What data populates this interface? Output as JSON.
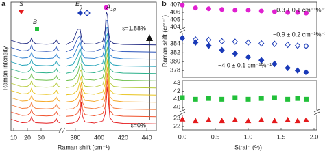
{
  "chart_data": [
    {
      "type": "line",
      "panel": "a",
      "ylabel": "Raman intensity",
      "xlabel": "Raman shift (cm⁻¹)",
      "annotations": [
        "ε=1.88%",
        "ε=0%"
      ],
      "peak_labels": [
        {
          "base": "S"
        },
        {
          "base": "B"
        },
        {
          "base": "E",
          "sub": "g"
        },
        {
          "base": "A",
          "sub": "1g"
        }
      ],
      "segments": [
        {
          "xlim": [
            8,
            44
          ],
          "xticks": [
            10,
            20,
            30
          ],
          "x": [
            8,
            16,
            20,
            22,
            23,
            24,
            26,
            34,
            39,
            40,
            41,
            42,
            44
          ],
          "series": [
            {
              "color": "#e41a1c",
              "values": [
                0.3,
                0.1,
                0.12,
                0.22,
                0.45,
                0.22,
                0.1,
                0.07,
                0.1,
                0.2,
                0.35,
                0.15,
                0.08
              ]
            },
            {
              "color": "#f0502a",
              "values": [
                0.3,
                0.1,
                0.12,
                0.22,
                0.44,
                0.22,
                0.1,
                0.07,
                0.1,
                0.2,
                0.34,
                0.15,
                0.08
              ]
            },
            {
              "color": "#f5793a",
              "values": [
                0.3,
                0.1,
                0.12,
                0.23,
                0.45,
                0.21,
                0.1,
                0.07,
                0.1,
                0.2,
                0.35,
                0.15,
                0.08
              ]
            },
            {
              "color": "#f5a623",
              "values": [
                0.3,
                0.1,
                0.12,
                0.22,
                0.43,
                0.22,
                0.1,
                0.07,
                0.1,
                0.21,
                0.34,
                0.15,
                0.08
              ]
            },
            {
              "color": "#e8c31a",
              "values": [
                0.3,
                0.1,
                0.12,
                0.22,
                0.44,
                0.21,
                0.1,
                0.07,
                0.1,
                0.2,
                0.35,
                0.14,
                0.08
              ]
            },
            {
              "color": "#b5c935",
              "values": [
                0.3,
                0.1,
                0.12,
                0.23,
                0.45,
                0.22,
                0.1,
                0.07,
                0.1,
                0.2,
                0.34,
                0.15,
                0.08
              ]
            },
            {
              "color": "#6cbf4a",
              "values": [
                0.3,
                0.1,
                0.12,
                0.22,
                0.44,
                0.22,
                0.1,
                0.07,
                0.1,
                0.21,
                0.35,
                0.15,
                0.08
              ]
            },
            {
              "color": "#2ab08a",
              "values": [
                0.3,
                0.1,
                0.12,
                0.22,
                0.45,
                0.21,
                0.1,
                0.07,
                0.1,
                0.2,
                0.34,
                0.15,
                0.08
              ]
            },
            {
              "color": "#1fa2b8",
              "values": [
                0.3,
                0.1,
                0.12,
                0.23,
                0.44,
                0.22,
                0.1,
                0.07,
                0.1,
                0.2,
                0.35,
                0.15,
                0.08
              ]
            },
            {
              "color": "#2a7fd0",
              "values": [
                0.3,
                0.1,
                0.12,
                0.22,
                0.43,
                0.22,
                0.1,
                0.07,
                0.1,
                0.21,
                0.34,
                0.14,
                0.08
              ]
            },
            {
              "color": "#2850b8",
              "values": [
                0.3,
                0.1,
                0.12,
                0.22,
                0.44,
                0.21,
                0.1,
                0.07,
                0.1,
                0.2,
                0.35,
                0.15,
                0.08
              ]
            },
            {
              "color": "#1a237e",
              "values": [
                0.3,
                0.1,
                0.12,
                0.23,
                0.45,
                0.22,
                0.1,
                0.07,
                0.1,
                0.2,
                0.34,
                0.15,
                0.08
              ]
            }
          ]
        },
        {
          "xlim": [
            372,
            448
          ],
          "xticks": [
            380,
            400,
            420,
            440
          ],
          "x": [
            372,
            378,
            382,
            384,
            385,
            386,
            388,
            396,
            403,
            405,
            406,
            407,
            408,
            409,
            412,
            420,
            448
          ],
          "series": [
            {
              "color": "#e41a1c",
              "values": [
                0.05,
                0.08,
                0.2,
                0.55,
                1.3,
                0.5,
                0.15,
                0.08,
                0.2,
                0.6,
                1.4,
                2.2,
                1.2,
                0.4,
                0.12,
                0.06,
                0.03
              ]
            },
            {
              "color": "#f0502a",
              "values": [
                0.05,
                0.08,
                0.22,
                0.6,
                1.3,
                0.48,
                0.15,
                0.08,
                0.2,
                0.62,
                1.45,
                2.2,
                1.15,
                0.4,
                0.12,
                0.06,
                0.03
              ]
            },
            {
              "color": "#f5793a",
              "values": [
                0.05,
                0.08,
                0.25,
                0.7,
                1.25,
                0.45,
                0.14,
                0.08,
                0.2,
                0.65,
                1.5,
                2.15,
                1.1,
                0.38,
                0.12,
                0.06,
                0.03
              ]
            },
            {
              "color": "#f5a623",
              "values": [
                0.05,
                0.09,
                0.28,
                0.8,
                1.2,
                0.42,
                0.14,
                0.08,
                0.2,
                0.68,
                1.55,
                2.1,
                1.05,
                0.36,
                0.12,
                0.06,
                0.03
              ]
            },
            {
              "color": "#e8c31a",
              "values": [
                0.05,
                0.09,
                0.32,
                0.9,
                1.15,
                0.4,
                0.13,
                0.08,
                0.2,
                0.7,
                1.6,
                2.1,
                1.0,
                0.35,
                0.12,
                0.06,
                0.03
              ]
            },
            {
              "color": "#b5c935",
              "values": [
                0.05,
                0.1,
                0.38,
                1.0,
                1.1,
                0.38,
                0.13,
                0.08,
                0.21,
                0.72,
                1.65,
                2.05,
                0.95,
                0.34,
                0.12,
                0.06,
                0.03
              ]
            },
            {
              "color": "#6cbf4a",
              "values": [
                0.05,
                0.1,
                0.45,
                1.05,
                1.0,
                0.35,
                0.12,
                0.08,
                0.21,
                0.75,
                1.7,
                2.0,
                0.9,
                0.33,
                0.12,
                0.06,
                0.03
              ]
            },
            {
              "color": "#2ab08a",
              "values": [
                0.05,
                0.12,
                0.55,
                1.1,
                0.9,
                0.32,
                0.12,
                0.08,
                0.22,
                0.78,
                1.75,
                2.0,
                0.88,
                0.32,
                0.12,
                0.06,
                0.03
              ]
            },
            {
              "color": "#1fa2b8",
              "values": [
                0.05,
                0.14,
                0.65,
                1.1,
                0.8,
                0.3,
                0.11,
                0.08,
                0.22,
                0.8,
                1.8,
                1.95,
                0.85,
                0.3,
                0.12,
                0.06,
                0.03
              ]
            },
            {
              "color": "#2a7fd0",
              "values": [
                0.05,
                0.16,
                0.75,
                1.05,
                0.7,
                0.28,
                0.11,
                0.08,
                0.22,
                0.82,
                1.85,
                1.9,
                0.8,
                0.3,
                0.12,
                0.06,
                0.03
              ]
            },
            {
              "color": "#2850b8",
              "values": [
                0.05,
                0.2,
                0.85,
                1.0,
                0.6,
                0.26,
                0.1,
                0.08,
                0.23,
                0.85,
                1.9,
                1.85,
                0.78,
                0.28,
                0.12,
                0.06,
                0.03
              ]
            },
            {
              "color": "#1a237e",
              "values": [
                0.05,
                0.25,
                0.95,
                0.95,
                0.5,
                0.25,
                0.1,
                0.08,
                0.23,
                0.88,
                1.95,
                1.8,
                0.75,
                0.28,
                0.12,
                0.06,
                0.03
              ]
            }
          ]
        }
      ]
    },
    {
      "type": "scatter",
      "panel": "b",
      "xlim": [
        0,
        2
      ],
      "ylim": [
        403.6,
        407.4
      ],
      "yticks": [
        404,
        405,
        406,
        407
      ],
      "x": [
        0,
        0.2,
        0.4,
        0.6,
        0.8,
        1.0,
        1.2,
        1.4,
        1.6,
        1.75,
        1.88
      ],
      "annotations": [
        {
          "text": "−0.3 ± 0.1 cm⁻¹%⁻¹",
          "color": "#e020d0"
        }
      ],
      "series": [
        {
          "marker": "circle",
          "filled": true,
          "color": "#e020d0",
          "values": [
            407.0,
            406.6,
            406.5,
            406.4,
            406.3,
            406.3,
            406.2,
            406.1,
            406.0,
            406.0,
            405.9
          ]
        }
      ]
    },
    {
      "type": "scatter",
      "ylabel": "Raman shift (cm⁻¹)",
      "xlim": [
        0,
        2
      ],
      "ylim": [
        376.5,
        386.5
      ],
      "yticks": [
        378,
        380,
        382,
        384
      ],
      "x": [
        0,
        0.2,
        0.4,
        0.6,
        0.8,
        1.0,
        1.2,
        1.4,
        1.6,
        1.75,
        1.88
      ],
      "annotations": [
        {
          "text": "−0.9 ± 0.2 cm⁻¹%⁻¹",
          "color": "#1a3ab8"
        },
        {
          "text": "−4.0 ± 0.1 cm⁻¹%⁻¹",
          "color": "#1a3ab8"
        }
      ],
      "series": [
        {
          "marker": "diamond",
          "filled": false,
          "color": "#1a3ab8",
          "values": [
            385.3,
            385.0,
            384.9,
            384.6,
            384.5,
            384.3,
            384.1,
            384.0,
            383.8,
            383.6,
            383.5
          ]
        },
        {
          "marker": "diamond",
          "filled": true,
          "color": "#1a3ab8",
          "values": [
            385.3,
            384.3,
            383.6,
            382.6,
            381.8,
            381.0,
            380.3,
            379.5,
            378.6,
            378.0,
            377.6
          ]
        }
      ]
    },
    {
      "type": "scatter",
      "xlim": [
        0,
        2
      ],
      "ylim": [
        39.6,
        43.3
      ],
      "yticks": [
        40,
        41,
        42,
        43
      ],
      "x": [
        0,
        0.2,
        0.4,
        0.6,
        0.8,
        1.0,
        1.2,
        1.4,
        1.6,
        1.75,
        1.88
      ],
      "series": [
        {
          "marker": "square",
          "filled": true,
          "color": "#22c03a",
          "values": [
            41.2,
            41.0,
            41.1,
            41.0,
            41.2,
            41.0,
            41.1,
            41.2,
            41.0,
            41.1,
            41.0
          ]
        }
      ]
    },
    {
      "type": "scatter",
      "xlabel": "Strain (%)",
      "xlim": [
        0,
        2
      ],
      "ylim": [
        21.6,
        23.5
      ],
      "yticks": [
        22,
        23
      ],
      "xticks": [
        {
          "value": 0,
          "label": "0.0"
        },
        {
          "value": 0.5,
          "label": "0.5"
        },
        {
          "value": 1,
          "label": "1.0"
        },
        {
          "value": 1.5,
          "label": "1.5"
        },
        {
          "value": 2,
          "label": "2.0"
        }
      ],
      "x": [
        0,
        0.2,
        0.4,
        0.6,
        0.8,
        1.0,
        1.2,
        1.4,
        1.6,
        1.75,
        1.88
      ],
      "series": [
        {
          "marker": "triangle",
          "filled": true,
          "color": "#e41a1c",
          "values": [
            22.9,
            22.7,
            22.8,
            22.7,
            22.8,
            22.7,
            22.8,
            22.7,
            22.8,
            22.7,
            22.8
          ]
        }
      ]
    }
  ]
}
